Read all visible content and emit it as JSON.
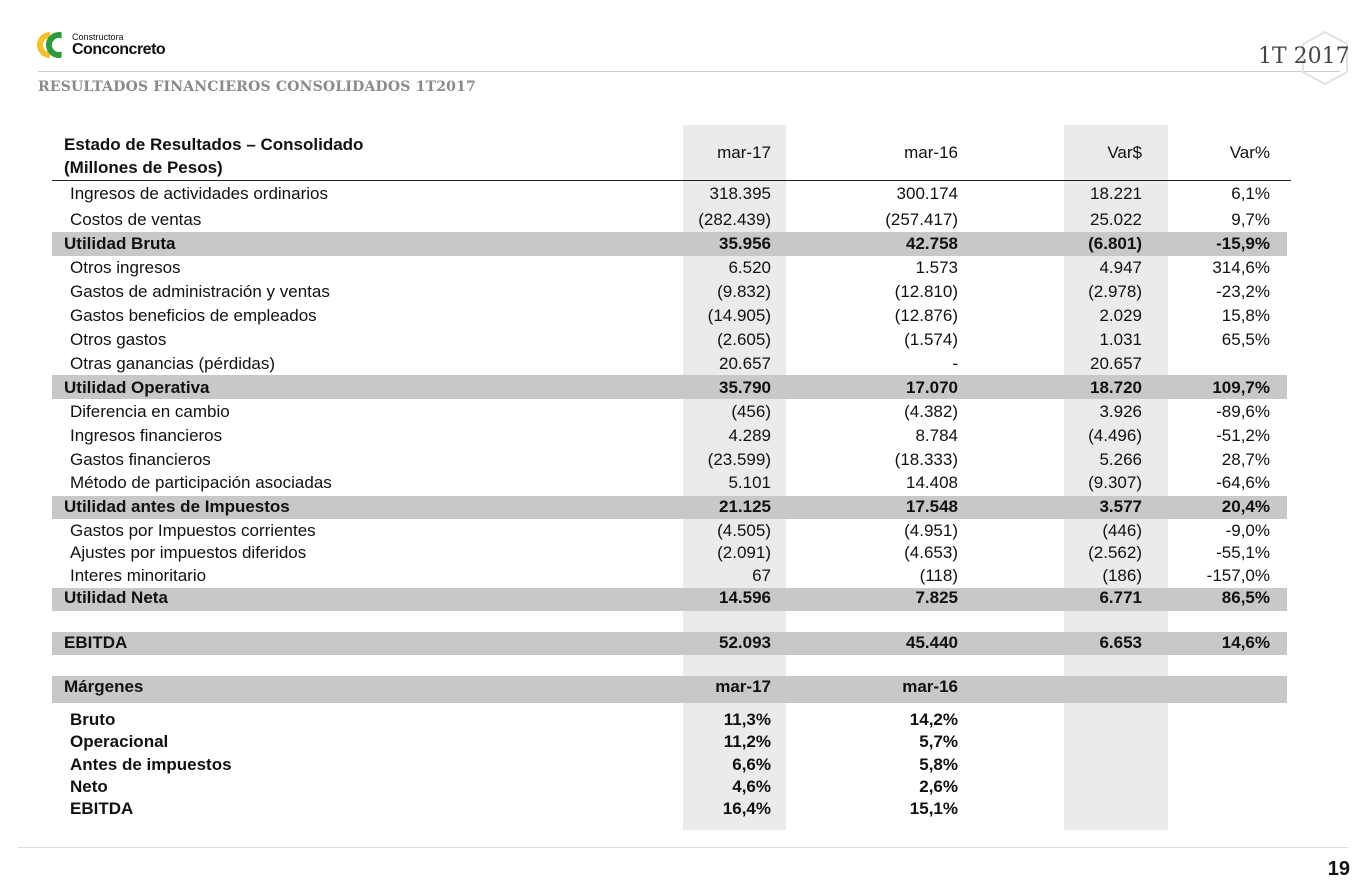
{
  "logo": {
    "line1": "Constructora",
    "line2": "Conconcreto"
  },
  "header": {
    "title": "RESULTADOS FINANCIEROS CONSOLIDADOS 1T2017",
    "period": "1T 2017"
  },
  "table": {
    "title": "Estado de Resultados – Consolidado",
    "subtitle": "(Millones de Pesos)",
    "columns": [
      "mar-17",
      "mar-16",
      "Var$",
      "Var%"
    ],
    "rows": [
      {
        "label": "Ingresos de actividades ordinarios",
        "values": [
          "318.395",
          "300.174",
          "18.221",
          "6,1%"
        ]
      },
      {
        "label": "Costos de ventas",
        "values": [
          "(282.439)",
          "(257.417)",
          "25.022",
          "9,7%"
        ]
      },
      {
        "label": "Utilidad Bruta",
        "values": [
          "35.956",
          "42.758",
          "(6.801)",
          "-15,9%"
        ],
        "total": true
      },
      {
        "label": "Otros ingresos",
        "values": [
          "6.520",
          "1.573",
          "4.947",
          "314,6%"
        ]
      },
      {
        "label": "Gastos de administración y ventas",
        "values": [
          "(9.832)",
          "(12.810)",
          "(2.978)",
          "-23,2%"
        ]
      },
      {
        "label": "Gastos beneficios de empleados",
        "values": [
          "(14.905)",
          "(12.876)",
          "2.029",
          "15,8%"
        ]
      },
      {
        "label": "Otros gastos",
        "values": [
          "(2.605)",
          "(1.574)",
          "1.031",
          "65,5%"
        ]
      },
      {
        "label": "Otras ganancias (pérdidas)",
        "values": [
          "20.657",
          "-",
          "20.657",
          ""
        ]
      },
      {
        "label": "Utilidad Operativa",
        "values": [
          "35.790",
          "17.070",
          "18.720",
          "109,7%"
        ],
        "total": true
      },
      {
        "label": "Diferencia en cambio",
        "values": [
          "(456)",
          "(4.382)",
          "3.926",
          "-89,6%"
        ]
      },
      {
        "label": "Ingresos financieros",
        "values": [
          "4.289",
          "8.784",
          "(4.496)",
          "-51,2%"
        ]
      },
      {
        "label": "Gastos financieros",
        "values": [
          "(23.599)",
          "(18.333)",
          "5.266",
          "28,7%"
        ]
      },
      {
        "label": "Método de participación asociadas",
        "values": [
          "5.101",
          "14.408",
          "(9.307)",
          "-64,6%"
        ]
      },
      {
        "label": "Utilidad antes de Impuestos",
        "values": [
          "21.125",
          "17.548",
          "3.577",
          "20,4%"
        ],
        "total": true
      },
      {
        "label": "Gastos por Impuestos corrientes",
        "values": [
          "(4.505)",
          "(4.951)",
          "(446)",
          "-9,0%"
        ]
      },
      {
        "label": "Ajustes por impuestos diferidos",
        "values": [
          "(2.091)",
          "(4.653)",
          "(2.562)",
          "-55,1%"
        ]
      },
      {
        "label": "Interes minoritario",
        "values": [
          "67",
          "(118)",
          "(186)",
          "-157,0%"
        ]
      },
      {
        "label": "Utilidad Neta",
        "values": [
          "14.596",
          "7.825",
          "6.771",
          "86,5%"
        ],
        "total": true
      },
      {
        "label": "EBITDA",
        "values": [
          "52.093",
          "45.440",
          "6.653",
          "14,6%"
        ],
        "total": true
      },
      {
        "label": "Márgenes",
        "values": [
          "mar-17",
          "mar-16",
          "",
          ""
        ],
        "total": true
      },
      {
        "label": "Bruto",
        "values": [
          "11,3%",
          "14,2%",
          "",
          ""
        ],
        "bold": true
      },
      {
        "label": "Operacional",
        "values": [
          "11,2%",
          "5,7%",
          "",
          ""
        ],
        "bold": true
      },
      {
        "label": "Antes de impuestos",
        "values": [
          "6,6%",
          "5,8%",
          "",
          ""
        ],
        "bold": true
      },
      {
        "label": "Neto",
        "values": [
          "4,6%",
          "2,6%",
          "",
          ""
        ],
        "bold": true
      },
      {
        "label": "EBITDA",
        "values": [
          "16,4%",
          "15,1%",
          "",
          ""
        ],
        "bold": true
      }
    ]
  },
  "footer": {
    "page": "19"
  }
}
